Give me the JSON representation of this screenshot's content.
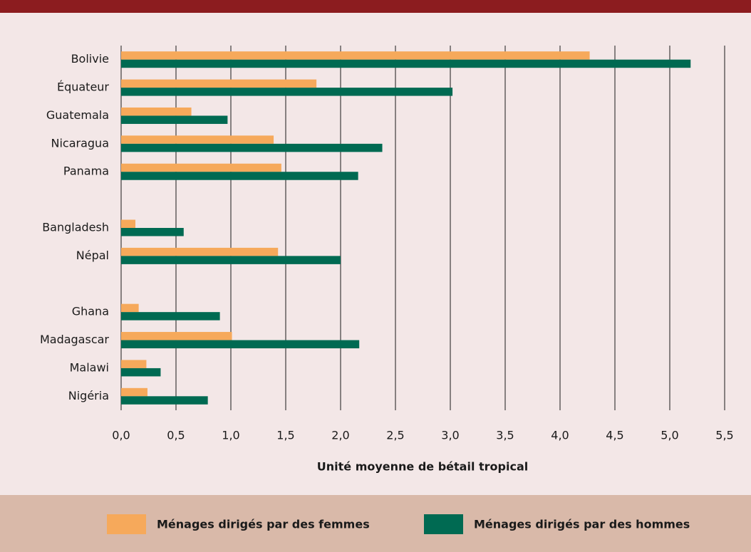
{
  "chart_data": {
    "type": "barh",
    "xlabel": "Unité moyenne de bétail tropical",
    "categories": [
      "Bolivie",
      "Équateur",
      "Guatemala",
      "Nicaragua",
      "Panama",
      null,
      "Bangladesh",
      "Népal",
      null,
      "Ghana",
      "Madagascar",
      "Malawi",
      "Nigéria"
    ],
    "series": [
      {
        "name": "Ménages dirigés par des femmes",
        "color": "#f6a95b",
        "values": [
          4.27,
          1.78,
          0.64,
          1.39,
          1.46,
          null,
          0.13,
          1.43,
          null,
          0.16,
          1.01,
          0.23,
          0.24
        ]
      },
      {
        "name": "Ménages dirigés par des hommes",
        "color": "#006a52",
        "values": [
          5.19,
          3.02,
          0.97,
          2.38,
          2.16,
          null,
          0.57,
          2.0,
          null,
          0.9,
          2.17,
          0.36,
          0.79
        ]
      }
    ],
    "xlim": [
      0,
      5.5
    ],
    "xticks": [
      {
        "value": 0,
        "label": "0,0"
      },
      {
        "value": 0.5,
        "label": "0,5"
      },
      {
        "value": 1,
        "label": "1,0"
      },
      {
        "value": 1.5,
        "label": "1,5"
      },
      {
        "value": 2,
        "label": "2,0"
      },
      {
        "value": 2.5,
        "label": "2,5"
      },
      {
        "value": 3,
        "label": "3,0"
      },
      {
        "value": 3.5,
        "label": "3,5"
      },
      {
        "value": 4,
        "label": "4,0"
      },
      {
        "value": 4.5,
        "label": "4,5"
      },
      {
        "value": 5,
        "label": "5,0"
      },
      {
        "value": 5.5,
        "label": "5,5"
      }
    ],
    "grid": true,
    "legend": "bottom"
  }
}
